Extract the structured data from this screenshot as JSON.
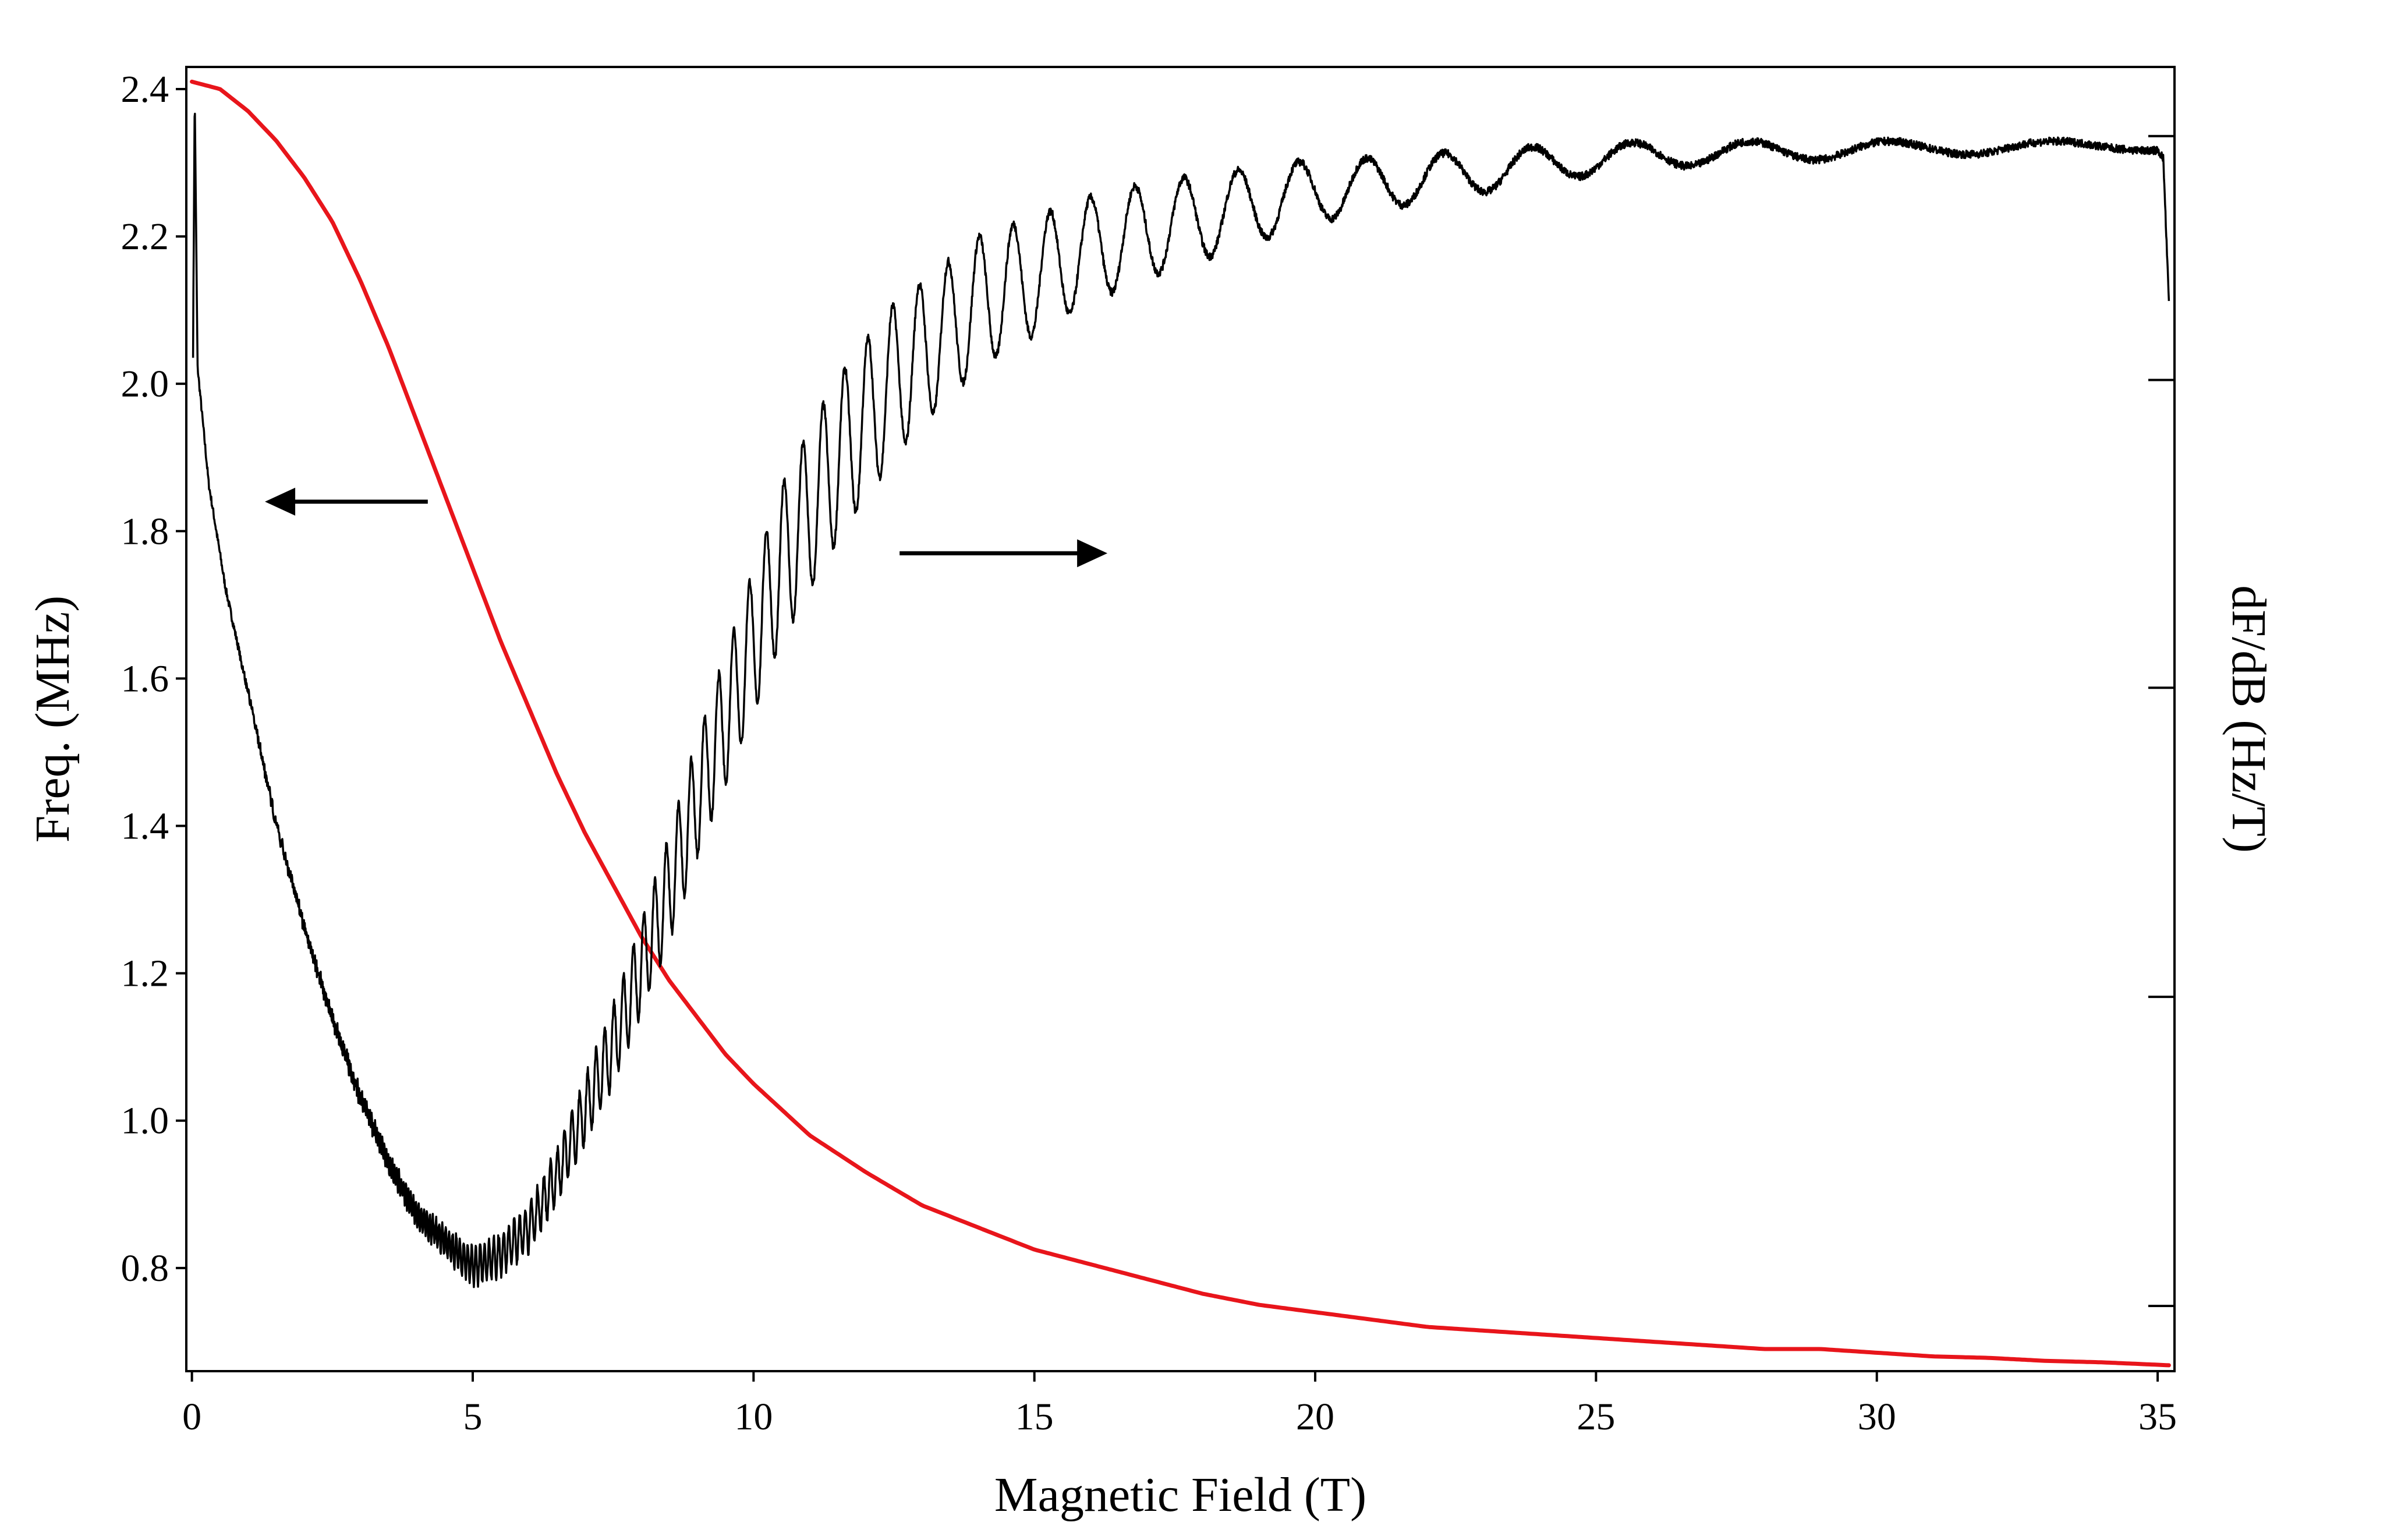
{
  "chart_data": {
    "type": "line",
    "xlabel": "Magnetic Field (T)",
    "ylabel_left": "Freq. (MHz)",
    "ylabel_right": "dF/dB (Hz/T)",
    "xlim": [
      -0.1,
      35.3
    ],
    "ylim_left": [
      0.66,
      2.43
    ],
    "x_ticks": [
      0,
      5,
      10,
      15,
      20,
      25,
      30,
      35
    ],
    "y_ticks_left": [
      0.8,
      1.0,
      1.2,
      1.4,
      1.6,
      1.8,
      2.0,
      2.2,
      2.4
    ],
    "y_tick_labels_left": [
      "0.8",
      "1.0",
      "1.2",
      "1.4",
      "1.6",
      "1.8",
      "2.0",
      "2.2",
      "2.4"
    ],
    "right_axis_tick_labels_shown": false,
    "right_axis_relative_range": [
      0,
      1
    ],
    "right_axis_tick_positions_relative": [
      0.05,
      0.287,
      0.524,
      0.76,
      0.947
    ],
    "series": [
      {
        "axis": "left",
        "color": "#e8151b",
        "x": [
          0,
          0.5,
          1,
          1.5,
          2,
          2.5,
          3,
          3.5,
          4,
          4.5,
          5,
          5.5,
          6,
          6.5,
          7,
          7.5,
          8,
          8.5,
          9,
          9.5,
          10,
          11,
          12,
          13,
          14,
          15,
          16,
          17,
          18,
          19,
          20,
          21,
          22,
          23,
          24,
          25,
          26,
          27,
          28,
          29,
          30,
          31,
          32,
          33,
          34,
          35.2
        ],
        "y": [
          2.41,
          2.4,
          2.37,
          2.33,
          2.28,
          2.22,
          2.14,
          2.05,
          1.95,
          1.85,
          1.75,
          1.65,
          1.56,
          1.47,
          1.39,
          1.32,
          1.25,
          1.19,
          1.14,
          1.09,
          1.05,
          0.98,
          0.93,
          0.885,
          0.855,
          0.825,
          0.805,
          0.785,
          0.765,
          0.75,
          0.74,
          0.73,
          0.72,
          0.715,
          0.71,
          0.705,
          0.7,
          0.695,
          0.69,
          0.69,
          0.685,
          0.68,
          0.678,
          0.674,
          0.672,
          0.668
        ]
      },
      {
        "axis": "right",
        "color": "#000000",
        "values_relative": true,
        "x": [
          0.02,
          0.05,
          0.1,
          0.3,
          0.6,
          1,
          1.5,
          2,
          2.5,
          3,
          3.5,
          4,
          4.5,
          5,
          5.5,
          6,
          6.5,
          7,
          7.5,
          8,
          8.5,
          9,
          9.5,
          10,
          10.5,
          11,
          11.5,
          12,
          12.5,
          13,
          13.5,
          14,
          15,
          16,
          17,
          18,
          19,
          20,
          21,
          22,
          23,
          24,
          25,
          26,
          27,
          28,
          29,
          30,
          31,
          32,
          33,
          34,
          35,
          35.1,
          35.2
        ],
        "y": [
          0.78,
          0.98,
          0.77,
          0.68,
          0.6,
          0.52,
          0.42,
          0.34,
          0.27,
          0.21,
          0.16,
          0.12,
          0.1,
          0.08,
          0.09,
          0.11,
          0.15,
          0.2,
          0.25,
          0.31,
          0.37,
          0.44,
          0.5,
          0.56,
          0.62,
          0.66,
          0.7,
          0.73,
          0.76,
          0.78,
          0.8,
          0.82,
          0.84,
          0.86,
          0.875,
          0.885,
          0.895,
          0.905,
          0.91,
          0.915,
          0.92,
          0.925,
          0.93,
          0.932,
          0.934,
          0.935,
          0.936,
          0.937,
          0.938,
          0.938,
          0.939,
          0.939,
          0.94,
          0.93,
          0.82
        ],
        "oscillation_amplitude_relative": [
          0,
          0,
          0,
          0,
          0,
          0.002,
          0.003,
          0.004,
          0.005,
          0.006,
          0.007,
          0.009,
          0.012,
          0.014,
          0.016,
          0.018,
          0.02,
          0.025,
          0.03,
          0.035,
          0.04,
          0.045,
          0.05,
          0.055,
          0.06,
          0.062,
          0.062,
          0.06,
          0.058,
          0.055,
          0.052,
          0.05,
          0.045,
          0.04,
          0.036,
          0.032,
          0.028,
          0.024,
          0.02,
          0.018,
          0.016,
          0.014,
          0.012,
          0.01,
          0.009,
          0.008,
          0.007,
          0.006,
          0.005,
          0.005,
          0.004,
          0.004,
          0.004,
          0,
          0
        ]
      }
    ],
    "annotations": [
      {
        "type": "arrow",
        "direction": "left",
        "points_to": "left axis",
        "from": [
          4.2,
          1.84
        ],
        "to": [
          1.3,
          1.84
        ]
      },
      {
        "type": "arrow",
        "direction": "right",
        "points_to": "right axis",
        "from": [
          12.6,
          1.77
        ],
        "to": [
          16.3,
          1.77
        ]
      }
    ]
  }
}
